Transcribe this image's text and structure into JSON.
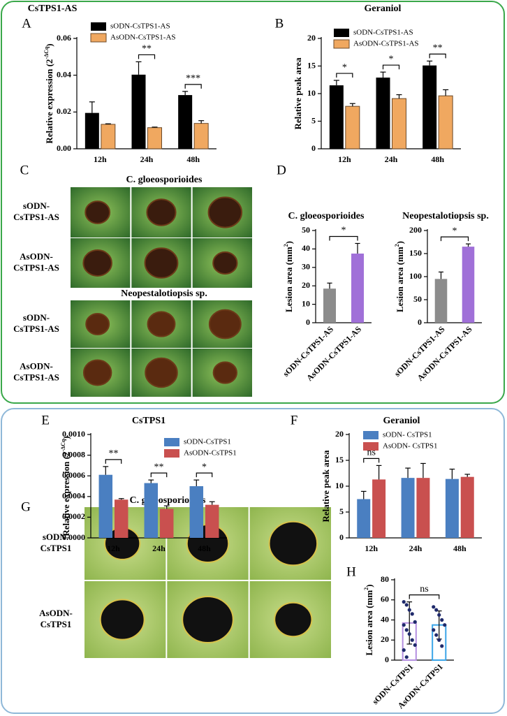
{
  "chart_data": [
    {
      "type": "bar",
      "title": "CsTPS1-AS",
      "ylabel": [
        "Relative expression (2",
        "-ΔCq",
        ")"
      ],
      "categories": [
        "12h",
        "24h",
        "48h"
      ],
      "series": [
        {
          "name": "sODN-CsTPS1-AS",
          "color": "#000000",
          "values": [
            0.0195,
            0.0403,
            0.0292
          ],
          "errors": [
            0.006,
            0.007,
            0.002
          ]
        },
        {
          "name": "AsODN-CsTPS1-AS",
          "color": "#f0a860",
          "values": [
            0.0133,
            0.0115,
            0.0138
          ],
          "errors": [
            0.0003,
            0.0003,
            0.0015
          ]
        }
      ],
      "significance": [
        null,
        "**",
        "***"
      ],
      "ylim": [
        0,
        0.06
      ],
      "yticks": [
        {
          "value": 0,
          "label": "0.00"
        },
        0.02,
        0.04,
        0.06
      ]
    },
    {
      "type": "bar",
      "title": "Geraniol",
      "ylabel": [
        "Relative peak area"
      ],
      "categories": [
        "12h",
        "24h",
        "48h"
      ],
      "series": [
        {
          "name": "sODN-CsTPS1-AS",
          "color": "#000000",
          "values": [
            11.5,
            12.9,
            15.1
          ],
          "errors": [
            0.9,
            1.0,
            0.8
          ]
        },
        {
          "name": "AsODN-CsTPS1-AS",
          "color": "#f0a860",
          "values": [
            7.7,
            9.1,
            9.6
          ],
          "errors": [
            0.5,
            0.7,
            1.1
          ]
        }
      ],
      "significance": [
        "*",
        "*",
        "**"
      ],
      "ylim": [
        0,
        20
      ],
      "yticks": [
        0,
        5,
        10,
        15,
        20
      ]
    },
    {
      "type": "bar",
      "title": "C. gloeosporioides",
      "ylabel": [
        "Lesion area (mm",
        "2",
        ")"
      ],
      "categories": [
        "sODN-CsTPS1-AS",
        "AsODN-CsTPS1-AS"
      ],
      "values": [
        18.5,
        37.5
      ],
      "errors": [
        3,
        5.5
      ],
      "colors": [
        "#8c8c8c",
        "#a070d8"
      ],
      "significance": "*",
      "ylim": [
        0,
        50
      ],
      "yticks": [
        0,
        10,
        20,
        30,
        40,
        50
      ]
    },
    {
      "type": "bar",
      "title": "Neopestalotiopsis sp.",
      "ylabel": [
        "Lesion area (mm",
        "2",
        ")"
      ],
      "categories": [
        "sODN-CsTPS1-AS",
        "AsODN-CsTPS1-AS"
      ],
      "values": [
        95,
        165
      ],
      "errors": [
        15,
        6
      ],
      "colors": [
        "#8c8c8c",
        "#a070d8"
      ],
      "significance": "*",
      "ylim": [
        0,
        200
      ],
      "yticks": [
        0,
        50,
        100,
        150,
        200
      ]
    },
    {
      "type": "bar",
      "title": "CsTPS1",
      "ylabel": [
        "Relative expression (2",
        "-ΔCq",
        ")"
      ],
      "categories": [
        "12h",
        "24h",
        "48h"
      ],
      "series": [
        {
          "name": "sODN-CsTPS1",
          "color": "#4a7fc1",
          "values": [
            0.00061,
            0.00053,
            0.0005
          ],
          "errors": [
            8e-05,
            3e-05,
            6e-05
          ]
        },
        {
          "name": "AsODN-CsTPS1",
          "color": "#c9504f",
          "values": [
            0.00037,
            0.00028,
            0.00032
          ],
          "errors": [
            1e-05,
            3e-05,
            3e-05
          ]
        }
      ],
      "significance": [
        "**",
        "**",
        "*"
      ],
      "ylim": [
        0,
        0.001
      ],
      "yticks": [
        {
          "value": 0,
          "label": "0.0000"
        },
        0.0002,
        0.0004,
        0.0006,
        0.0008,
        {
          "value": 0.001,
          "label": "0.0010"
        }
      ]
    },
    {
      "type": "bar",
      "title": "Geraniol",
      "ylabel": [
        "Relative peak area"
      ],
      "categories": [
        "12h",
        "24h",
        "48h"
      ],
      "series": [
        {
          "name": "sODN- CsTPS1",
          "color": "#4a7fc1",
          "values": [
            7.5,
            11.6,
            11.4
          ],
          "errors": [
            1.5,
            1.9,
            1.9
          ]
        },
        {
          "name": "AsODN- CsTPS1",
          "color": "#c9504f",
          "values": [
            11.3,
            11.6,
            11.8
          ],
          "errors": [
            2.7,
            2.8,
            0.5
          ]
        }
      ],
      "significance": [
        "ns",
        null,
        null
      ],
      "ylim": [
        0,
        20
      ],
      "yticks": [
        0,
        5,
        10,
        15,
        20
      ]
    },
    {
      "type": "bar",
      "ylabel": [
        "Lesion area (mm",
        "2",
        ")"
      ],
      "categories": [
        "sODN-CsTPS1",
        "AsODN-CsTPS1"
      ],
      "values": [
        37,
        35
      ],
      "errors": [
        21,
        14
      ],
      "colors": [
        "#b48fe0",
        "#3aa5e8"
      ],
      "style": "outline",
      "error_direction": "both",
      "points": [
        [
          58,
          55,
          50,
          46,
          38,
          35,
          30,
          26,
          20,
          15,
          10,
          3
        ],
        [
          53,
          50,
          45,
          40,
          35,
          30,
          25,
          20,
          14
        ]
      ],
      "point_color": "#1f2a6b",
      "significance": "ns",
      "ylim": [
        0,
        80
      ],
      "yticks": [
        0,
        20,
        40,
        60,
        80
      ]
    }
  ],
  "panel_letters": [
    "A",
    "B",
    "C",
    "D",
    "E",
    "F",
    "G",
    "H"
  ],
  "photo_panels": [
    {
      "title": "C. gloeosporioides",
      "rows": [
        [
          "sODN-",
          "CsTPS1-AS"
        ],
        [
          "AsODN-",
          "CsTPS1-AS"
        ]
      ]
    },
    {
      "title": "Neopestalotiopsis sp.",
      "rows": [
        [
          "sODN-",
          "CsTPS1-AS"
        ],
        [
          "AsODN-",
          "CsTPS1-AS"
        ]
      ]
    },
    {
      "title": "C. gloeosporioides",
      "rows": [
        [
          "sODN-",
          "CsTPS1"
        ],
        [
          "AsODN-",
          "CsTPS1"
        ]
      ]
    }
  ]
}
